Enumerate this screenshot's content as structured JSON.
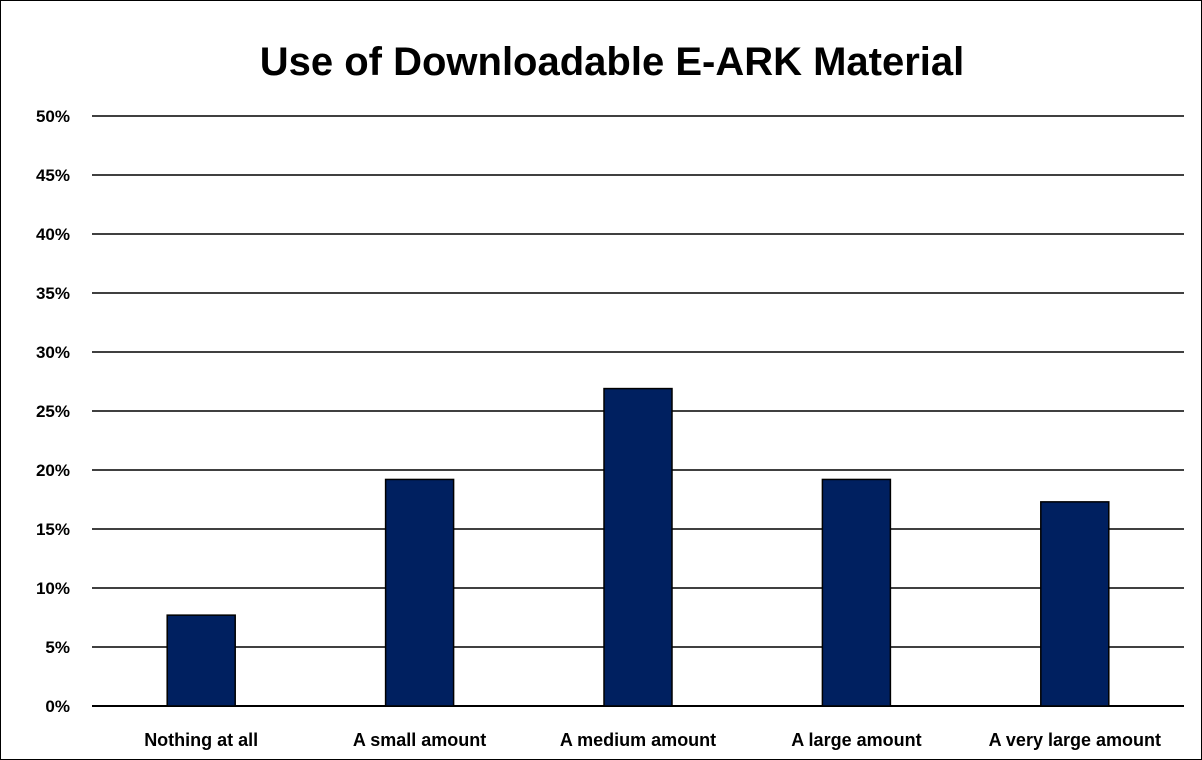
{
  "chart_data": {
    "type": "bar",
    "title": "Use of Downloadable E-ARK Material",
    "xlabel": "",
    "ylabel": "",
    "categories": [
      "Nothing at all",
      "A small amount",
      "A medium amount",
      "A large amount",
      "A very large amount"
    ],
    "values": [
      7.7,
      19.2,
      26.9,
      19.2,
      17.3
    ],
    "ylim": [
      0,
      50
    ],
    "y_ticks": [
      0,
      5,
      10,
      15,
      20,
      25,
      30,
      35,
      40,
      45,
      50
    ],
    "y_tick_format": "%",
    "grid": true,
    "legend": "none",
    "bar_color": "#002060"
  }
}
